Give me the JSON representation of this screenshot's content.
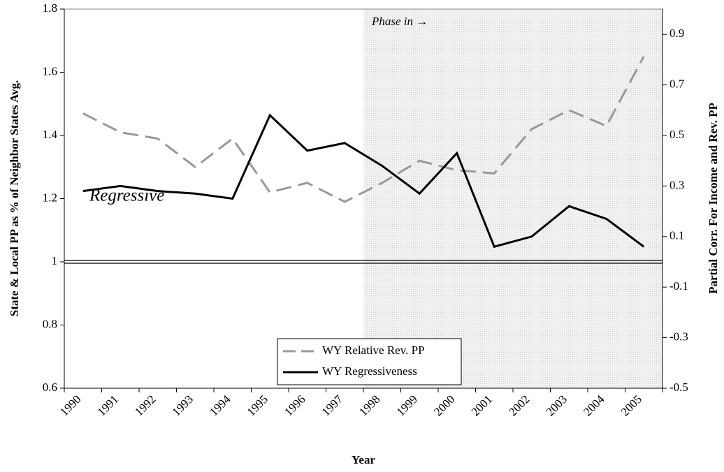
{
  "chart_data": {
    "type": "line",
    "y_label": "State & Local PP as % of Neighbor States Avg.",
    "y2_label": "Partial Corr. For Income and Rev. PP",
    "x_label": "Year",
    "categories": [
      "1990",
      "1991",
      "1992",
      "1993",
      "1994",
      "1995",
      "1996",
      "1997",
      "1998",
      "1999",
      "2000",
      "2001",
      "2002",
      "2003",
      "2004",
      "2005"
    ],
    "series": [
      {
        "name": "WY Relative Rev. PP",
        "color": "#999999",
        "dash": true,
        "values": [
          1.47,
          1.41,
          1.39,
          1.3,
          1.39,
          1.22,
          1.25,
          1.19,
          1.25,
          1.32,
          1.29,
          1.28,
          1.42,
          1.48,
          1.43,
          1.65
        ]
      },
      {
        "name": "WY Regressiveness",
        "color": "#000000",
        "dash": false,
        "axis": "y2",
        "values": [
          0.28,
          0.3,
          0.28,
          0.27,
          0.25,
          0.58,
          0.44,
          0.47,
          0.38,
          0.27,
          0.43,
          0.06,
          0.1,
          0.22,
          0.17,
          0.06
        ]
      }
    ],
    "ylim": [
      0.6,
      1.8
    ],
    "yticks": [
      0.6,
      0.8,
      1,
      1.2,
      1.4,
      1.6,
      1.8
    ],
    "y2lim": [
      -0.5,
      1.0
    ],
    "y2ticks": [
      -0.5,
      -0.3,
      -0.1,
      0.1,
      0.3,
      0.5,
      0.7,
      0.9
    ],
    "reference_line": 1,
    "shaded_from": "1998",
    "annotations": [
      "Phase in →",
      "Regressive"
    ],
    "legend": "bottom"
  }
}
